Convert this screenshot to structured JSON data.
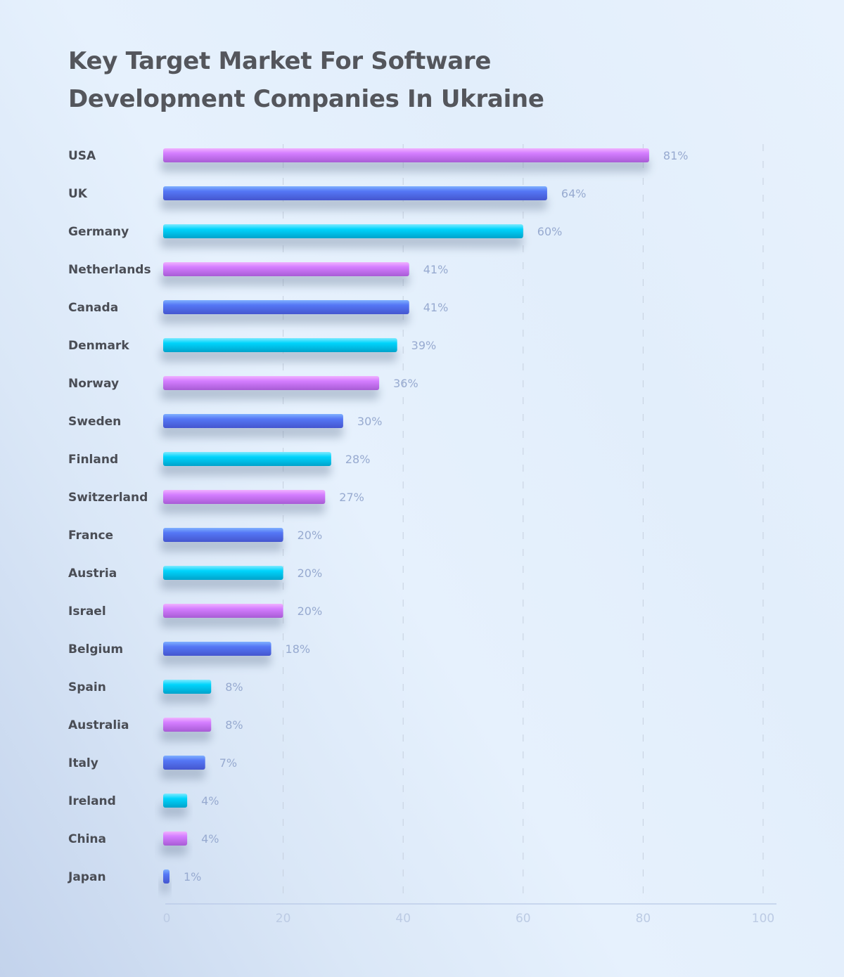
{
  "chart_data": {
    "type": "bar",
    "orientation": "horizontal",
    "title": "Key Target Market For Software Development Companies In Ukraine",
    "categories": [
      "USA",
      "UK",
      "Germany",
      "Netherlands",
      "Canada",
      "Denmark",
      "Norway",
      "Sweden",
      "Finland",
      "Switzerland",
      "France",
      "Austria",
      "Israel",
      "Belgium",
      "Spain",
      "Australia",
      "Italy",
      "Ireland",
      "China",
      "Japan"
    ],
    "values": [
      81,
      64,
      60,
      41,
      41,
      39,
      36,
      30,
      28,
      27,
      20,
      20,
      20,
      18,
      8,
      8,
      7,
      4,
      4,
      1
    ],
    "value_labels": [
      "81%",
      "64%",
      "60%",
      "41%",
      "41%",
      "39%",
      "36%",
      "30%",
      "28%",
      "27%",
      "20%",
      "20%",
      "20%",
      "18%",
      "8%",
      "8%",
      "7%",
      "4%",
      "4%",
      "1%"
    ],
    "xlim": [
      0,
      100
    ],
    "xticks": [
      "0",
      "20",
      "40",
      "60",
      "80",
      "100"
    ],
    "grid": "vertical dashed",
    "legend": "none",
    "colors": [
      "#d07cff",
      "#5577f5",
      "#00d2fb"
    ]
  }
}
